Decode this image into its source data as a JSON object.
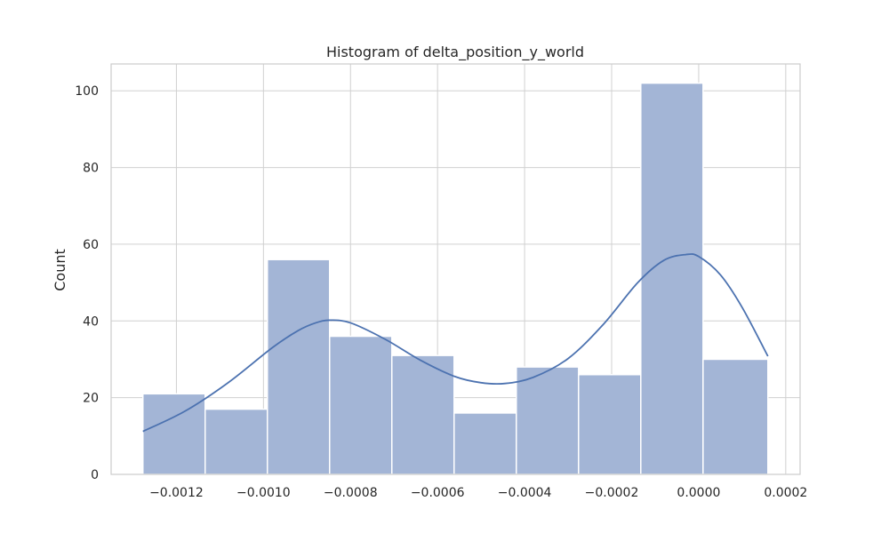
{
  "chart_data": {
    "type": "bar",
    "subtype": "histogram-with-kde",
    "title": "Histogram of delta_position_y_world",
    "xlabel": "",
    "ylabel": "Count",
    "bin_edges": [
      -0.001277,
      -0.001134,
      -0.000991,
      -0.000848,
      -0.000705,
      -0.000562,
      -0.000419,
      -0.000276,
      -0.000133,
      1e-05,
      0.000159
    ],
    "values": [
      21,
      17,
      56,
      36,
      31,
      16,
      28,
      26,
      102,
      30
    ],
    "xlim": [
      -0.00135,
      0.000233
    ],
    "ylim": [
      0,
      107
    ],
    "x_ticks": [
      -0.0012,
      -0.001,
      -0.0008,
      -0.0006,
      -0.0004,
      -0.0002,
      0.0,
      0.0002
    ],
    "x_tick_labels": [
      "−0.0012",
      "−0.0010",
      "−0.0008",
      "−0.0006",
      "−0.0004",
      "−0.0002",
      "0.0000",
      "0.0002"
    ],
    "y_ticks": [
      0,
      20,
      40,
      60,
      80,
      100
    ],
    "y_tick_labels": [
      "0",
      "20",
      "40",
      "60",
      "80",
      "100"
    ],
    "kde": {
      "x": [
        -0.001277,
        -0.00118,
        -0.00108,
        -0.00098,
        -0.00092,
        -0.00088,
        -0.000848,
        -0.0008,
        -0.00072,
        -0.00064,
        -0.00056,
        -0.0005,
        -0.000445,
        -0.00038,
        -0.0003,
        -0.00022,
        -0.00014,
        -8e-05,
        -3e-05,
        0.0,
        5e-05,
        0.0001,
        0.000159
      ],
      "y": [
        11.2,
        16.5,
        24,
        33,
        37.5,
        39.5,
        40.2,
        39.5,
        35.2,
        29.8,
        25.5,
        23.9,
        23.7,
        25.3,
        30.2,
        39,
        50,
        55.8,
        57.3,
        56.8,
        52,
        43.5,
        30.8
      ]
    },
    "grid": true,
    "legend": "none",
    "colors": {
      "bar_fill": "#a3b5d6",
      "bar_edge": "#ffffff",
      "kde_line": "#4c72b0",
      "grid": "#d0d0d0",
      "frame": "#cccccc",
      "text": "#262626"
    }
  }
}
